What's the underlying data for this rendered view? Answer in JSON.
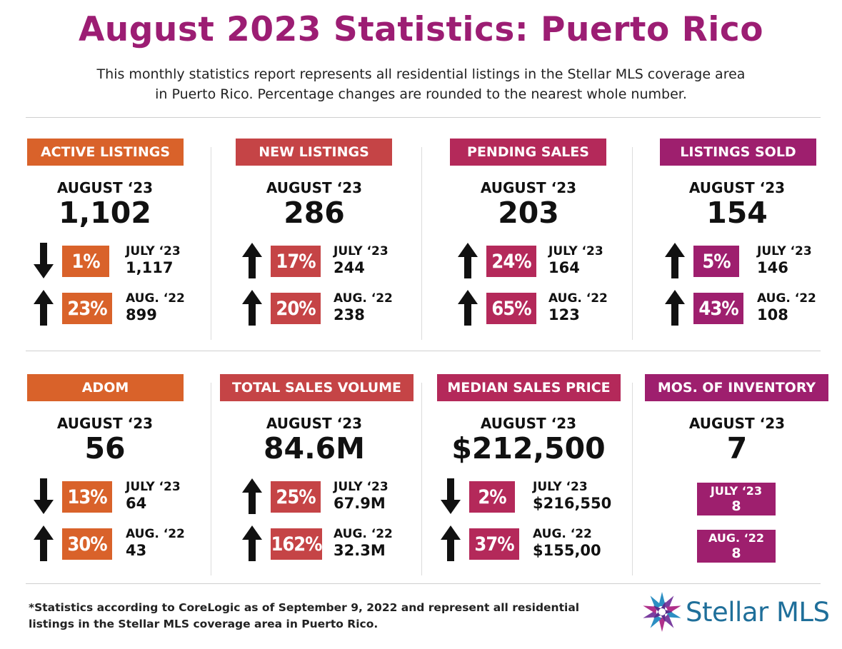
{
  "header": {
    "title": "August 2023 Statistics: Puerto Rico",
    "subtitle_line1": "This monthly statistics report represents all residential listings in the Stellar MLS coverage area",
    "subtitle_line2": "in Puerto Rico. Percentage changes are rounded to the nearest whole number."
  },
  "colors": {
    "orange": "#d9622a",
    "red": "#c54446",
    "crimson": "#b4295a",
    "magenta": "#9e1f6e",
    "title": "#9c1d73"
  },
  "metrics": [
    {
      "tag": "ACTIVE LISTINGS",
      "period": "AUGUST ‘23",
      "value": "1,102",
      "comparisons": [
        {
          "direction": "down",
          "pct": "1%",
          "label": "JULY ‘23",
          "value": "1,117"
        },
        {
          "direction": "up",
          "pct": "23%",
          "label": "AUG. ‘22",
          "value": "899"
        }
      ]
    },
    {
      "tag": "NEW LISTINGS",
      "period": "AUGUST ‘23",
      "value": "286",
      "comparisons": [
        {
          "direction": "up",
          "pct": "17%",
          "label": "JULY ‘23",
          "value": "244"
        },
        {
          "direction": "up",
          "pct": "20%",
          "label": "AUG. ‘22",
          "value": "238"
        }
      ]
    },
    {
      "tag": "PENDING SALES",
      "period": "AUGUST ‘23",
      "value": "203",
      "comparisons": [
        {
          "direction": "up",
          "pct": "24%",
          "label": "JULY ‘23",
          "value": "164"
        },
        {
          "direction": "up",
          "pct": "65%",
          "label": "AUG. ‘22",
          "value": "123"
        }
      ]
    },
    {
      "tag": "LISTINGS SOLD",
      "period": "AUGUST ‘23",
      "value": "154",
      "comparisons": [
        {
          "direction": "up",
          "pct": "5%",
          "label": "JULY ‘23",
          "value": "146"
        },
        {
          "direction": "up",
          "pct": "43%",
          "label": "AUG. ‘22",
          "value": "108"
        }
      ]
    },
    {
      "tag": "ADOM",
      "period": "AUGUST ‘23",
      "value": "56",
      "comparisons": [
        {
          "direction": "down",
          "pct": "13%",
          "label": "JULY ‘23",
          "value": "64"
        },
        {
          "direction": "up",
          "pct": "30%",
          "label": "AUG. ‘22",
          "value": "43"
        }
      ]
    },
    {
      "tag": "TOTAL SALES VOLUME",
      "period": "AUGUST ‘23",
      "value": "84.6M",
      "comparisons": [
        {
          "direction": "up",
          "pct": "25%",
          "label": "JULY ‘23",
          "value": "67.9M"
        },
        {
          "direction": "up",
          "pct": "162%",
          "label": "AUG. ‘22",
          "value": "32.3M"
        }
      ]
    },
    {
      "tag": "MEDIAN SALES PRICE",
      "period": "AUGUST ‘23",
      "value": "$212,500",
      "comparisons": [
        {
          "direction": "down",
          "pct": "2%",
          "label": "JULY ‘23",
          "value": "$216,550"
        },
        {
          "direction": "up",
          "pct": "37%",
          "label": "AUG. ‘22",
          "value": "$155,00"
        }
      ]
    },
    {
      "tag": "MOS. OF INVENTORY",
      "period": "AUGUST ‘23",
      "value": "7",
      "boxes": [
        {
          "label": "JULY ‘23",
          "value": "8"
        },
        {
          "label": "AUG. ‘22",
          "value": "8"
        }
      ]
    }
  ],
  "footer": {
    "footnote_line1": "*Statistics according to CoreLogic as of September 9, 2022 and represent all residential",
    "footnote_line2": "listings in the Stellar MLS coverage area in Puerto Rico.",
    "logo_text": "Stellar MLS"
  }
}
